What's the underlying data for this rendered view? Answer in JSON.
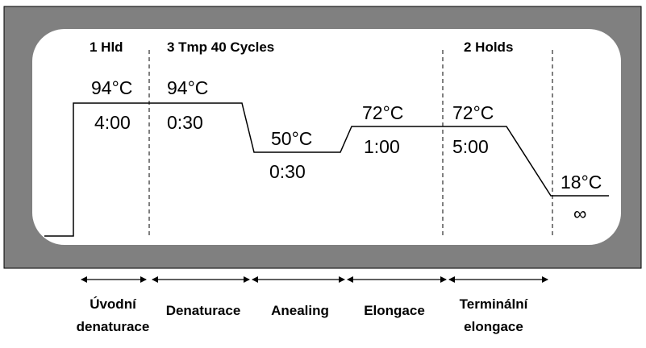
{
  "colors": {
    "frame": "#808080",
    "panel": "#ffffff",
    "line": "#000000"
  },
  "headers": {
    "hold_1": "1 Hld",
    "cycles": "3 Tmp 40 Cycles",
    "holds_2": "2 Holds"
  },
  "steps": [
    {
      "temp": "94°C",
      "time": "4:00"
    },
    {
      "temp": "94°C",
      "time": "0:30"
    },
    {
      "temp": "50°C",
      "time": "0:30"
    },
    {
      "temp": "72°C",
      "time": "1:00"
    },
    {
      "temp": "72°C",
      "time": "5:00"
    },
    {
      "temp": "18°C",
      "time": "∞"
    }
  ],
  "stages": [
    {
      "line1": "Úvodní",
      "line2": "denaturace"
    },
    {
      "line1": "Denaturace",
      "line2": ""
    },
    {
      "line1": "Anealing",
      "line2": ""
    },
    {
      "line1": "Elongace",
      "line2": ""
    },
    {
      "line1": "Terminální",
      "line2": "elongace"
    }
  ]
}
